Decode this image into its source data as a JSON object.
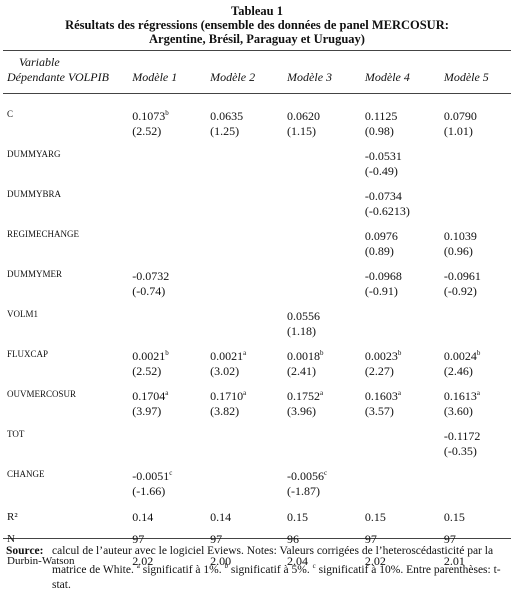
{
  "caption": {
    "number": "Tableau 1",
    "title_line1": "Résultats des régressions (ensemble des données de panel MERCOSUR:",
    "title_line2": "Argentine, Brésil, Paraguay et Uruguay)"
  },
  "table": {
    "header": {
      "variable": "Variable",
      "dependent": "Dépendante VOLPIB",
      "models": [
        "Modèle 1",
        "Modèle 2",
        "Modèle 3",
        "Modèle 4",
        "Modèle 5"
      ]
    },
    "rows": [
      {
        "label": "C",
        "cells": [
          {
            "coef": "0.1073",
            "sig": "b",
            "t": "(2.52)"
          },
          {
            "coef": "0.0635",
            "t": "(1.25)"
          },
          {
            "coef": "0.0620",
            "t": "(1.15)"
          },
          {
            "coef": "0.1125",
            "t": "(0.98)"
          },
          {
            "coef": "0.0790",
            "t": "(1.01)"
          }
        ]
      },
      {
        "label": "DUMMYARG",
        "cells": [
          null,
          null,
          null,
          {
            "coef": "-0.0531",
            "t": "(-0.49)"
          },
          null
        ]
      },
      {
        "label": "DUMMYBRA",
        "cells": [
          null,
          null,
          null,
          {
            "coef": "-0.0734",
            "t": "(-0.6213)"
          },
          null
        ]
      },
      {
        "label": "REGIMECHANGE",
        "cells": [
          null,
          null,
          null,
          {
            "coef": "0.0976",
            "t": "(0.89)"
          },
          {
            "coef": "0.1039",
            "t": "(0.96)"
          }
        ]
      },
      {
        "label": "DUMMYMER",
        "cells": [
          {
            "coef": "-0.0732",
            "t": "(-0.74)"
          },
          null,
          null,
          {
            "coef": "-0.0968",
            "t": "(-0.91)"
          },
          {
            "coef": "-0.0961",
            "t": "(-0.92)"
          }
        ]
      },
      {
        "label": "VOLM1",
        "cells": [
          null,
          null,
          {
            "coef": "0.0556",
            "t": "(1.18)"
          },
          null,
          null
        ]
      },
      {
        "label": "FLUXCAP",
        "cells": [
          {
            "coef": "0.0021",
            "sig": "b",
            "t": "(2.52)"
          },
          {
            "coef": "0.0021",
            "sig": "a",
            "t": "(3.02)"
          },
          {
            "coef": "0.0018",
            "sig": "b",
            "t": "(2.41)"
          },
          {
            "coef": "0.0023",
            "sig": "b",
            "t": "(2.27)"
          },
          {
            "coef": "0.0024",
            "sig": "b",
            "t": "(2.46)"
          }
        ]
      },
      {
        "label": "OUVMERCOSUR",
        "cells": [
          {
            "coef": "0.1704",
            "sig": "a",
            "t": "(3.97)"
          },
          {
            "coef": "0.1710",
            "sig": "a",
            "t": "(3.82)"
          },
          {
            "coef": "0.1752",
            "sig": "a",
            "t": "(3.96)"
          },
          {
            "coef": "0.1603",
            "sig": "a",
            "t": "(3.57)"
          },
          {
            "coef": "0.1613",
            "sig": "a",
            "t": "(3.60)"
          }
        ]
      },
      {
        "label": "TOT",
        "cells": [
          null,
          null,
          null,
          null,
          {
            "coef": "-0.1172",
            "t": "(-0.35)"
          }
        ]
      },
      {
        "label": "CHANGE",
        "cells": [
          {
            "coef": "-0.0051",
            "sig": "c",
            "t": "(-1.66)"
          },
          null,
          {
            "coef": "-0.0056",
            "sig": "c",
            "t": "(-1.87)"
          },
          null,
          null
        ]
      }
    ],
    "stats": [
      {
        "label": "R²",
        "values": [
          "0.14",
          "0.14",
          "0.15",
          "0.15",
          "0.15"
        ]
      },
      {
        "label": "N",
        "values": [
          "97",
          "97",
          "96",
          "97",
          "97"
        ]
      },
      {
        "label": "Durbin-Watson",
        "values": [
          "2.02",
          "2.00",
          "2.04",
          "2.02",
          "2.01"
        ]
      }
    ]
  },
  "source": {
    "label": "Source:",
    "text": [
      {
        "text": "calcul de l’auteur avec le logiciel Eviews. Notes: Valeurs corrigées de l’heteroscédasticité par la matrice de White. "
      },
      {
        "sup": "a"
      },
      {
        "text": " significatif à 1%. "
      },
      {
        "sup": "b"
      },
      {
        "text": " significatif à 5%. "
      },
      {
        "sup": "c"
      },
      {
        "text": " significatif à 10%. Entre parenthèses: t-stat."
      }
    ]
  }
}
